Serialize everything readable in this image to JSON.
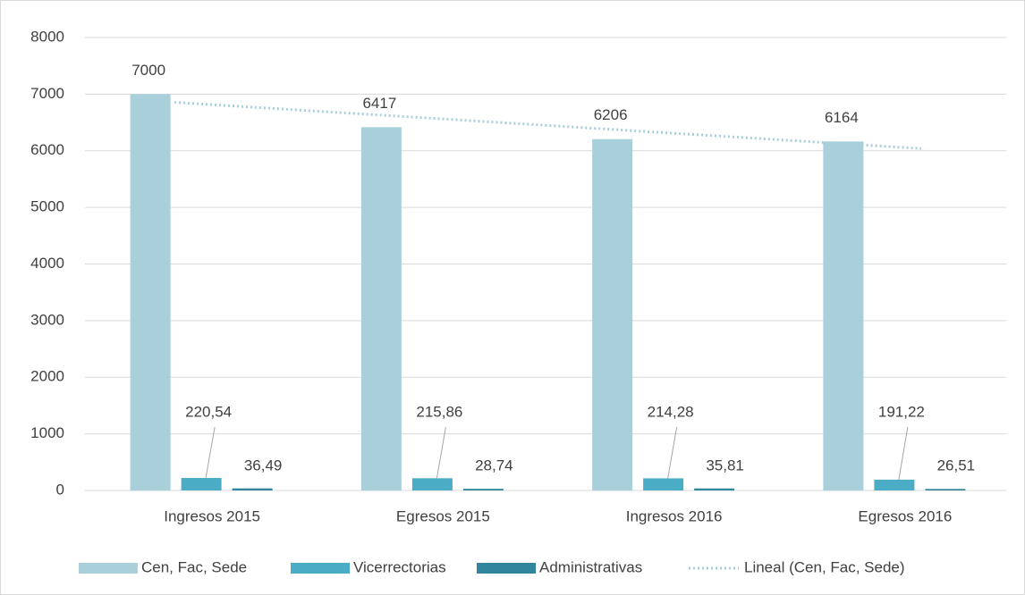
{
  "chart_data": {
    "type": "bar",
    "categories": [
      "Ingresos 2015",
      "Egresos 2015",
      "Ingresos 2016",
      "Egresos 2016"
    ],
    "series": [
      {
        "name": "Cen, Fac, Sede",
        "color": "#a9cfdb",
        "values": [
          7000,
          6417,
          6206,
          6164
        ]
      },
      {
        "name": "Vicerrectorias",
        "color": "#4bacc6",
        "values": [
          220.54,
          215.86,
          214.28,
          191.22
        ],
        "value_labels": [
          "220,54",
          "215,86",
          "214,28",
          "191,22"
        ]
      },
      {
        "name": "Administrativas",
        "color": "#31859c",
        "values": [
          36.49,
          28.74,
          35.81,
          26.51
        ],
        "value_labels": [
          "36,49",
          "28,74",
          "35,81",
          "26,51"
        ]
      },
      {
        "name": "Lineal (Cen, Fac, Sede)",
        "color": "#a9cfdb",
        "type": "trendline",
        "values": [
          6855,
          6583,
          6311,
          6039
        ]
      }
    ],
    "ylim": [
      0,
      8000
    ],
    "yticks": [
      0,
      1000,
      2000,
      3000,
      4000,
      5000,
      6000,
      7000,
      8000
    ],
    "grid": true,
    "legend": "bottom"
  }
}
